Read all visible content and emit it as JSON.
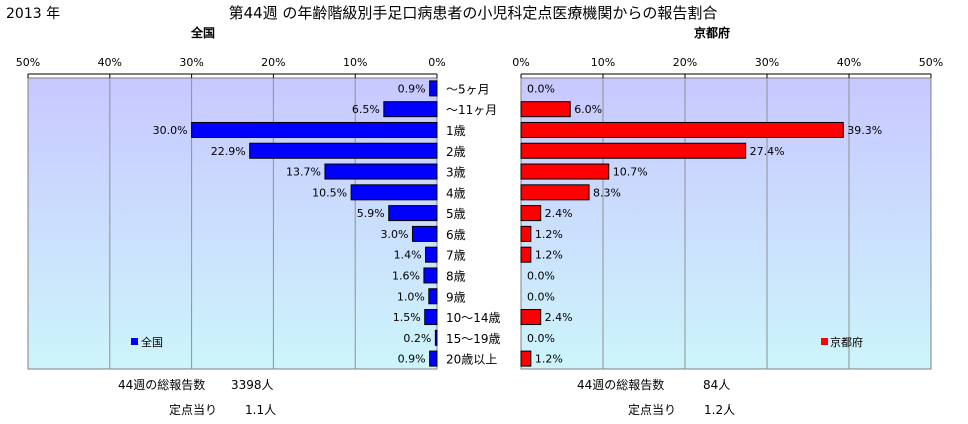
{
  "year_label": "2013 年",
  "title": "第44週 の年齢階級別手足口病患者の小児科定点医療機関からの報告割合",
  "age_labels": [
    "～5ヶ月",
    "～11ヶ月",
    "1歳",
    "2歳",
    "3歳",
    "4歳",
    "5歳",
    "6歳",
    "7歳",
    "8歳",
    "9歳",
    "10～14歳",
    "15～19歳",
    "20歳以上"
  ],
  "colors": {
    "national": "#0000ff",
    "kyoto": "#ff0000",
    "plot_top": "#c8c8ff",
    "plot_bottom": "#cdf5fb"
  },
  "chart_data": [
    {
      "type": "bar",
      "orientation": "horizontal",
      "direction": "right-to-left",
      "title": "全国",
      "legend": "全国",
      "legend_position": "bottom-left",
      "categories": [
        "～5ヶ月",
        "～11ヶ月",
        "1歳",
        "2歳",
        "3歳",
        "4歳",
        "5歳",
        "6歳",
        "7歳",
        "8歳",
        "9歳",
        "10～14歳",
        "15～19歳",
        "20歳以上"
      ],
      "values": [
        0.9,
        6.5,
        30.0,
        22.9,
        13.7,
        10.5,
        5.9,
        3.0,
        1.4,
        1.6,
        1.0,
        1.5,
        0.2,
        0.9
      ],
      "ticks": [
        "50%",
        "40%",
        "30%",
        "20%",
        "10%",
        "0%"
      ],
      "xlim": [
        0,
        50
      ],
      "grid": true,
      "footer": {
        "total_label": "44週の総報告数",
        "total_value": "3398人",
        "per_site_label": "定点当り",
        "per_site_value": "1.1人"
      }
    },
    {
      "type": "bar",
      "orientation": "horizontal",
      "direction": "left-to-right",
      "title": "京都府",
      "legend": "京都府",
      "legend_position": "bottom-right",
      "categories": [
        "～5ヶ月",
        "～11ヶ月",
        "1歳",
        "2歳",
        "3歳",
        "4歳",
        "5歳",
        "6歳",
        "7歳",
        "8歳",
        "9歳",
        "10～14歳",
        "15～19歳",
        "20歳以上"
      ],
      "values": [
        0.0,
        6.0,
        39.3,
        27.4,
        10.7,
        8.3,
        2.4,
        1.2,
        1.2,
        0.0,
        0.0,
        2.4,
        0.0,
        1.2
      ],
      "ticks": [
        "0%",
        "10%",
        "20%",
        "30%",
        "40%",
        "50%"
      ],
      "xlim": [
        0,
        50
      ],
      "grid": true,
      "footer": {
        "total_label": "44週の総報告数",
        "total_value": "84人",
        "per_site_label": "定点当り",
        "per_site_value": "1.2人"
      }
    }
  ]
}
